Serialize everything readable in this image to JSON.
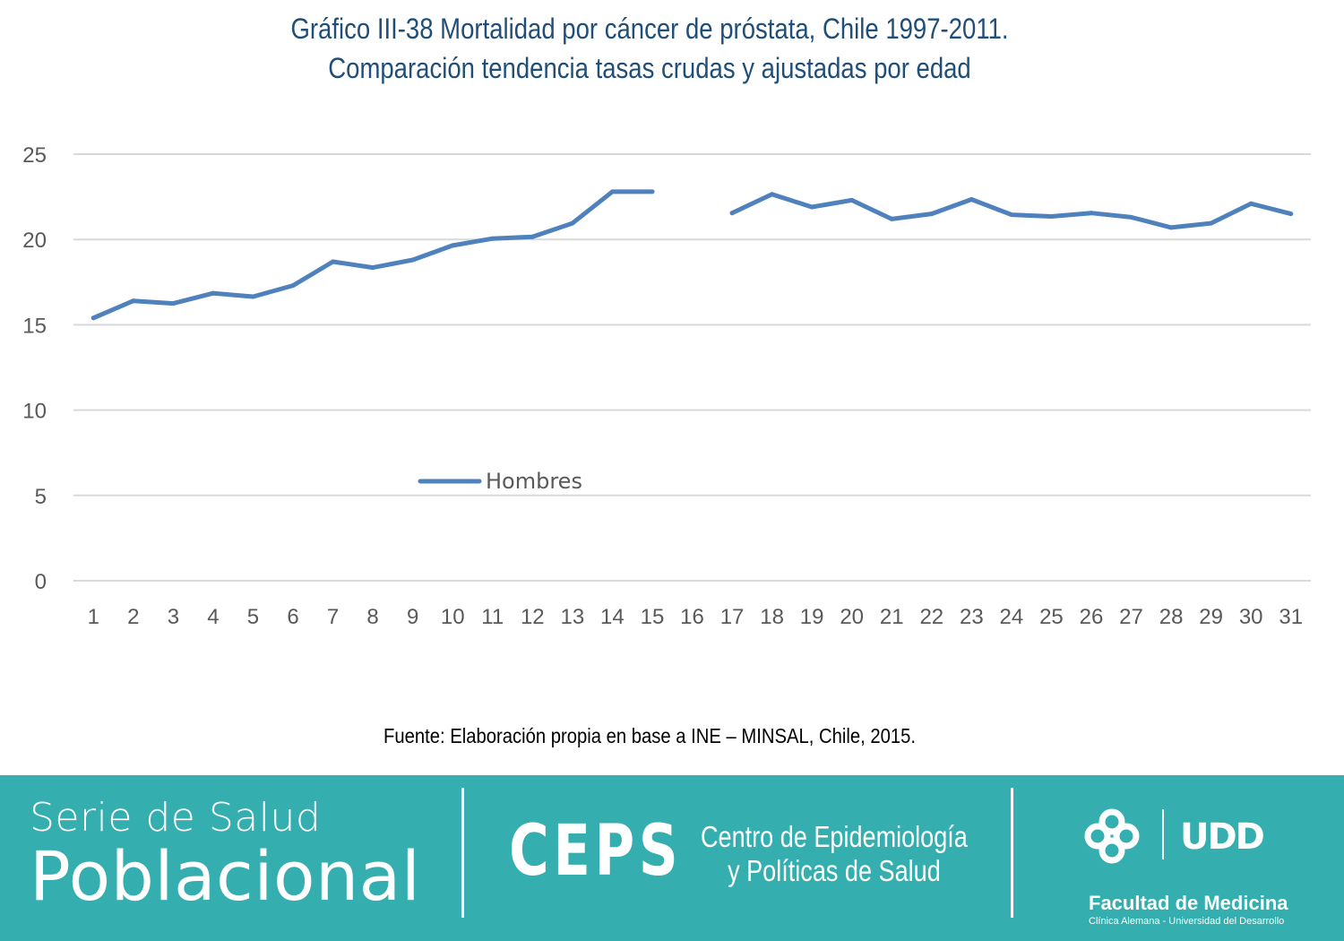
{
  "title_lines": [
    "Gráfico III-38 Mortalidad por cáncer de próstata, Chile 1997-2011.",
    "Comparación tendencia tasas crudas y ajustadas por edad"
  ],
  "chart_data": {
    "type": "line",
    "title": "Gráfico III-38 Mortalidad por cáncer de próstata, Chile 1997-2011. Comparación tendencia tasas crudas y ajustadas por edad",
    "x": [
      1,
      2,
      3,
      4,
      5,
      6,
      7,
      8,
      9,
      10,
      11,
      12,
      13,
      14,
      15,
      16,
      17,
      18,
      19,
      20,
      21,
      22,
      23,
      24,
      25,
      26,
      27,
      28,
      29,
      30,
      31
    ],
    "series": [
      {
        "name": "Hombres",
        "values": [
          15.4,
          16.4,
          16.25,
          16.85,
          16.65,
          17.3,
          18.7,
          18.35,
          18.8,
          19.65,
          20.05,
          20.15,
          20.95,
          22.8,
          22.8,
          null,
          21.55,
          22.65,
          21.9,
          22.3,
          21.2,
          21.5,
          22.35,
          21.45,
          21.35,
          21.55,
          21.3,
          20.7,
          20.95,
          22.1,
          21.5
        ],
        "color": "#4f81bd"
      }
    ],
    "y_ticks": [
      0,
      5,
      10,
      15,
      20,
      25
    ],
    "ylim": [
      0,
      25
    ],
    "xlabel": "",
    "ylabel": "",
    "grid": true,
    "legend_position": "inside-bottom-left"
  },
  "source": "Fuente: Elaboración propia en base a INE – MINSAL, Chile, 2015.",
  "footer": {
    "series_line1": "Serie de Salud",
    "series_line2": "Poblacional",
    "ceps": "CEPS",
    "ceps_full_line1": "Centro de Epidemiología",
    "ceps_full_line2": "y Políticas de Salud",
    "logo_text": "UDD",
    "faculty": "Facultad de Medicina",
    "faculty_sub": "Clínica Alemana - Universidad del Desarrollo",
    "color": "#34aeae"
  }
}
